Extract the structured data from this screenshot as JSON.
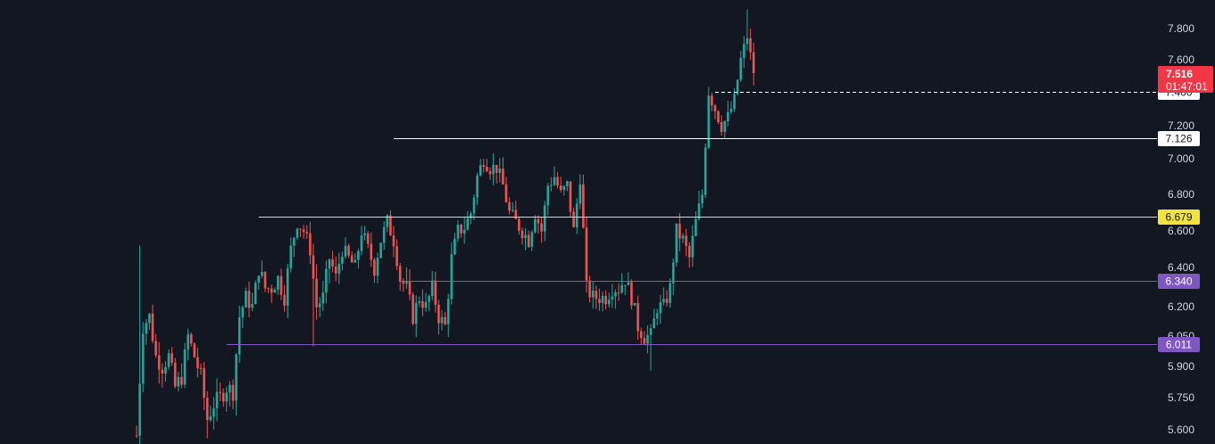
{
  "chart_data": {
    "type": "candlestick",
    "price_axis": {
      "tick_labels": [
        "7.800",
        "7.600",
        "7.400",
        "7.200",
        "7.000",
        "6.800",
        "6.600",
        "6.400",
        "6.200",
        "6.050",
        "5.900",
        "5.750",
        "5.600"
      ],
      "range": [
        5.55,
        7.98
      ]
    },
    "current_price": {
      "label": "7.516",
      "countdown": "01:47:01",
      "color": "#f23645"
    },
    "levels": [
      {
        "label": "7.400",
        "value": 7.4,
        "line_color": "#ffffff",
        "badge_bg": "#ffffff",
        "badge_text": "#131722",
        "dashed": true,
        "start_x": 180
      },
      {
        "label": "7.126",
        "value": 7.126,
        "line_color": "#ffffff",
        "badge_bg": "#ffffff",
        "badge_text": "#131722",
        "dashed": false,
        "start_x": 80
      },
      {
        "label": "6.679",
        "value": 6.679,
        "line_color": "#f5e33d",
        "badge_bg": "#f5e33d",
        "badge_text": "#131722",
        "dashed": false,
        "start_x": 38
      },
      {
        "label": "6.340",
        "value": 6.34,
        "line_color": "#7e57c2",
        "badge_bg": "#7e57c2",
        "badge_text": "#ffffff",
        "dashed": false,
        "start_x": 82
      },
      {
        "label": "6.011",
        "value": 6.011,
        "line_color": "#7e57c2",
        "badge_bg": "#7e57c2",
        "badge_text": "#ffffff",
        "dashed": false,
        "start_x": 28
      }
    ],
    "colors": {
      "up": "#26a69a",
      "down": "#ef5350",
      "background": "#131722"
    },
    "anchors": [
      [
        0,
        5.58
      ],
      [
        2,
        6.1
      ],
      [
        4,
        6.15
      ],
      [
        6,
        5.95
      ],
      [
        8,
        5.9
      ],
      [
        10,
        5.95
      ],
      [
        12,
        5.8
      ],
      [
        14,
        5.85
      ],
      [
        16,
        6.05
      ],
      [
        18,
        5.95
      ],
      [
        20,
        5.85
      ],
      [
        22,
        5.65
      ],
      [
        24,
        5.72
      ],
      [
        26,
        5.75
      ],
      [
        28,
        5.8
      ],
      [
        30,
        5.78
      ],
      [
        32,
        6.15
      ],
      [
        34,
        6.25
      ],
      [
        36,
        6.2
      ],
      [
        38,
        6.4
      ],
      [
        40,
        6.3
      ],
      [
        42,
        6.3
      ],
      [
        44,
        6.35
      ],
      [
        46,
        6.25
      ],
      [
        48,
        6.5
      ],
      [
        50,
        6.65
      ],
      [
        52,
        6.6
      ],
      [
        54,
        6.5
      ],
      [
        56,
        6.2
      ],
      [
        58,
        6.25
      ],
      [
        60,
        6.45
      ],
      [
        62,
        6.35
      ],
      [
        64,
        6.5
      ],
      [
        66,
        6.45
      ],
      [
        68,
        6.4
      ],
      [
        70,
        6.6
      ],
      [
        72,
        6.5
      ],
      [
        74,
        6.4
      ],
      [
        76,
        6.55
      ],
      [
        78,
        6.65
      ],
      [
        80,
        6.55
      ],
      [
        82,
        6.35
      ],
      [
        84,
        6.3
      ],
      [
        86,
        6.15
      ],
      [
        88,
        6.25
      ],
      [
        90,
        6.2
      ],
      [
        92,
        6.3
      ],
      [
        94,
        6.15
      ],
      [
        96,
        6.1
      ],
      [
        98,
        6.45
      ],
      [
        100,
        6.6
      ],
      [
        102,
        6.62
      ],
      [
        104,
        6.7
      ],
      [
        106,
        6.9
      ],
      [
        108,
        7.0
      ],
      [
        110,
        6.95
      ],
      [
        112,
        6.95
      ],
      [
        114,
        6.85
      ],
      [
        116,
        6.7
      ],
      [
        118,
        6.65
      ],
      [
        120,
        6.6
      ],
      [
        122,
        6.55
      ],
      [
        124,
        6.7
      ],
      [
        126,
        6.6
      ],
      [
        128,
        6.85
      ],
      [
        130,
        6.9
      ],
      [
        132,
        6.8
      ],
      [
        134,
        6.85
      ],
      [
        136,
        6.6
      ],
      [
        138,
        6.9
      ],
      [
        140,
        6.3
      ],
      [
        142,
        6.25
      ],
      [
        144,
        6.25
      ],
      [
        146,
        6.25
      ],
      [
        148,
        6.3
      ],
      [
        150,
        6.3
      ],
      [
        152,
        6.35
      ],
      [
        154,
        6.25
      ],
      [
        156,
        6.1
      ],
      [
        158,
        6.05
      ],
      [
        160,
        6.05
      ],
      [
        162,
        6.2
      ],
      [
        164,
        6.2
      ],
      [
        166,
        6.3
      ],
      [
        168,
        6.6
      ],
      [
        170,
        6.55
      ],
      [
        172,
        6.45
      ],
      [
        174,
        6.65
      ],
      [
        176,
        6.8
      ],
      [
        178,
        7.4
      ],
      [
        180,
        7.3
      ],
      [
        182,
        7.2
      ],
      [
        184,
        7.25
      ],
      [
        186,
        7.35
      ],
      [
        188,
        7.6
      ],
      [
        190,
        7.75
      ],
      [
        192,
        7.5
      ]
    ]
  }
}
